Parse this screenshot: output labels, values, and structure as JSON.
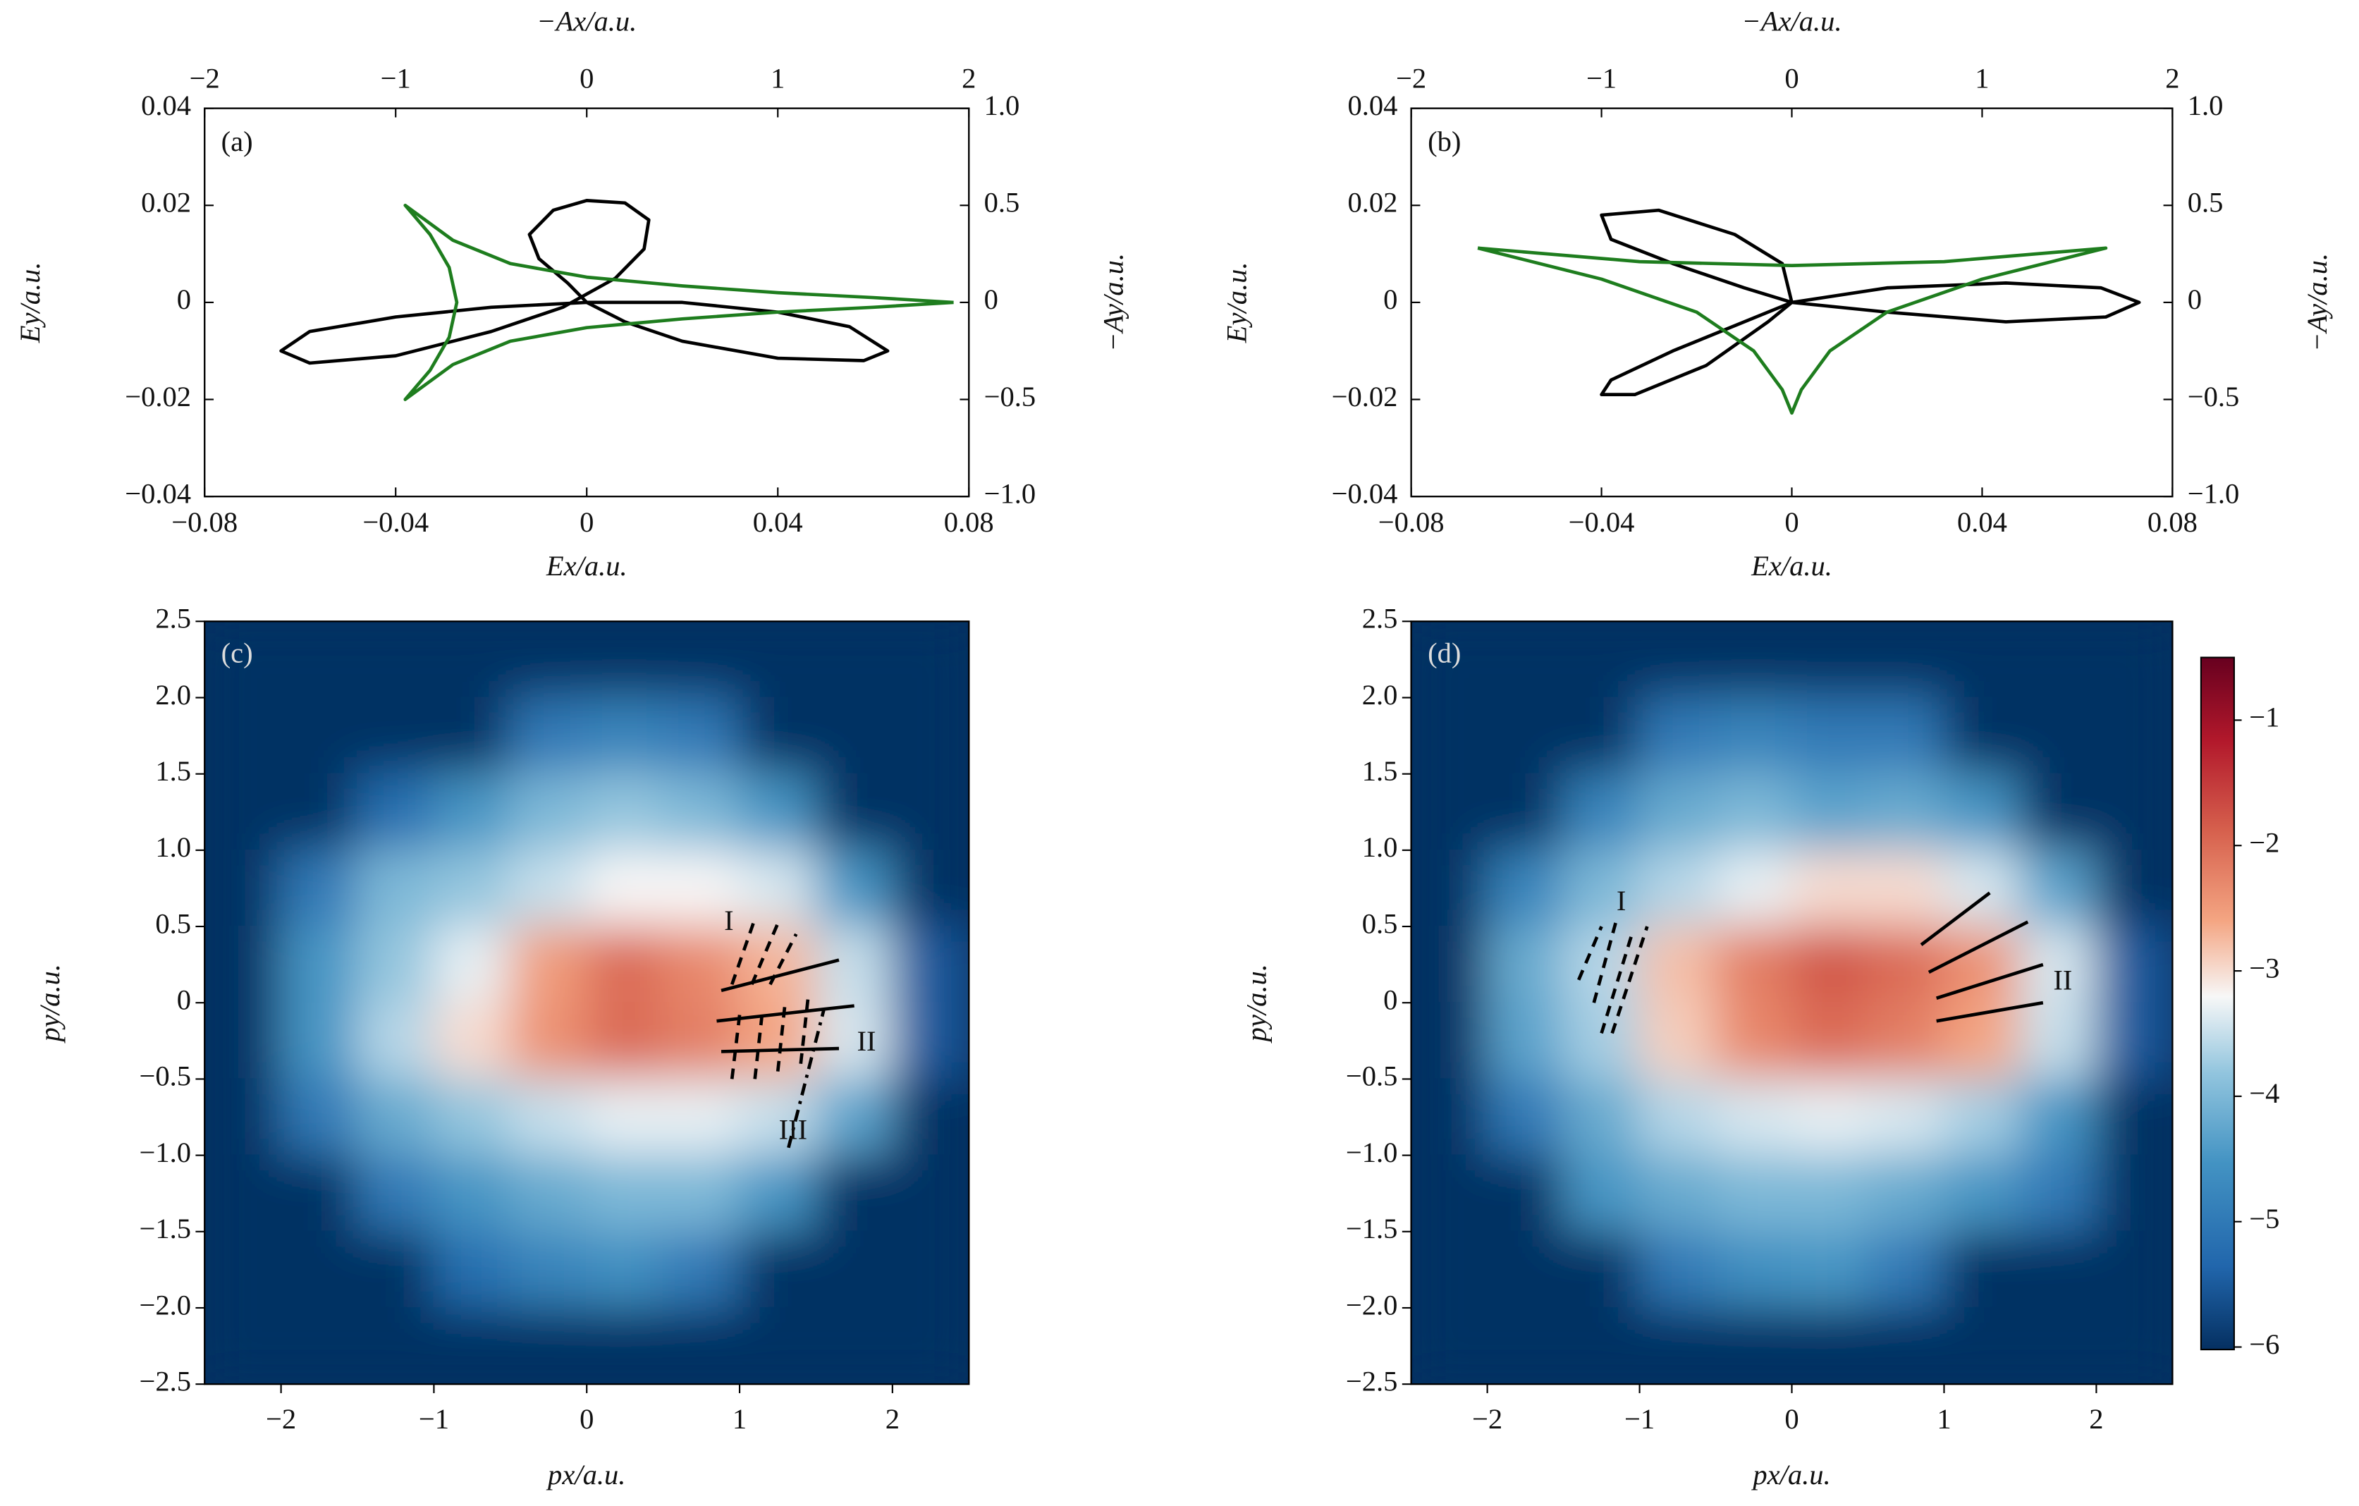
{
  "chart_data": [
    {
      "type": "line",
      "label": "(a)",
      "xlabel": "Ex/a.u.",
      "ylabel": "Ey/a.u.",
      "x2label": "−Ax/a.u.",
      "y2label": "−Ay/a.u.",
      "xlim": [
        -0.08,
        0.08
      ],
      "xticks": [
        {
          "value": -0.08,
          "label": "−0.08"
        },
        {
          "value": -0.04,
          "label": "−0.04"
        },
        0,
        0.04,
        0.08
      ],
      "ylim": [
        -0.04,
        0.04
      ],
      "yticks": [
        {
          "value": -0.04,
          "label": "−0.04"
        },
        {
          "value": -0.02,
          "label": "−0.02"
        },
        0,
        0.02,
        0.04
      ],
      "x2lim": [
        -2,
        2
      ],
      "x2ticks": [
        {
          "value": -2,
          "label": "−2"
        },
        {
          "value": -1,
          "label": "−1"
        },
        0,
        1,
        2
      ],
      "y2lim": [
        -1,
        1
      ],
      "y2ticks": [
        {
          "value": -1,
          "label": "−1.0"
        },
        {
          "value": -0.5,
          "label": "−0.5"
        },
        0,
        0.5,
        {
          "value": 1,
          "label": "1.0"
        }
      ],
      "series": [
        {
          "color": "#000000",
          "x": [
            0,
            0.02,
            0.04,
            0.055,
            0.063,
            0.058,
            0.04,
            0.02,
            0.008,
            0,
            -0.02,
            -0.04,
            -0.058,
            -0.064,
            -0.058,
            -0.04,
            -0.02,
            -0.005,
            0.006,
            0.012,
            0.013,
            0.008,
            0,
            -0.007,
            -0.012,
            -0.01,
            -0.004,
            0
          ],
          "y": [
            0,
            0,
            -0.002,
            -0.005,
            -0.01,
            -0.012,
            -0.0115,
            -0.008,
            -0.004,
            0,
            -0.001,
            -0.003,
            -0.006,
            -0.01,
            -0.0125,
            -0.011,
            -0.006,
            -0.001,
            0.005,
            0.011,
            0.017,
            0.0205,
            0.021,
            0.019,
            0.014,
            0.009,
            0.004,
            0
          ]
        },
        {
          "color": "#1e7d1e",
          "xaxis": "x2",
          "axis": "y2",
          "x": [
            1.92,
            1.5,
            1.0,
            0.5,
            0,
            -0.4,
            -0.7,
            -0.95,
            -0.82,
            -0.72,
            -0.68,
            -0.72,
            -0.82,
            -0.95,
            -0.7,
            -0.4,
            0,
            0.5,
            1.0,
            1.5,
            1.92
          ],
          "y": [
            0,
            0.025,
            0.05,
            0.085,
            0.13,
            0.2,
            0.32,
            0.5,
            0.35,
            0.18,
            0,
            -0.18,
            -0.35,
            -0.5,
            -0.32,
            -0.2,
            -0.13,
            -0.085,
            -0.05,
            -0.025,
            0
          ]
        }
      ]
    },
    {
      "type": "line",
      "label": "(b)",
      "xlabel": "Ex/a.u.",
      "ylabel": "Ey/a.u.",
      "x2label": "−Ax/a.u.",
      "y2label": "−Ay/a.u.",
      "xlim": [
        -0.08,
        0.08
      ],
      "xticks": [
        {
          "value": -0.08,
          "label": "−0.08"
        },
        {
          "value": -0.04,
          "label": "−0.04"
        },
        0,
        0.04,
        0.08
      ],
      "ylim": [
        -0.04,
        0.04
      ],
      "yticks": [
        {
          "value": -0.04,
          "label": "−0.04"
        },
        {
          "value": -0.02,
          "label": "−0.02"
        },
        0,
        0.02,
        0.04
      ],
      "x2lim": [
        -2,
        2
      ],
      "x2ticks": [
        {
          "value": -2,
          "label": "−2"
        },
        {
          "value": -1,
          "label": "−1"
        },
        0,
        1,
        2
      ],
      "y2lim": [
        -1,
        1
      ],
      "y2ticks": [
        {
          "value": -1,
          "label": "−1.0"
        },
        {
          "value": -0.5,
          "label": "−0.5"
        },
        0,
        0.5,
        {
          "value": 1,
          "label": "1.0"
        }
      ],
      "series": [
        {
          "color": "#000000",
          "x": [
            0,
            0.02,
            0.045,
            0.065,
            0.073,
            0.066,
            0.045,
            0.02,
            0,
            -0.01,
            -0.025,
            -0.038,
            -0.04,
            -0.033,
            -0.018,
            -0.005,
            0,
            -0.002,
            -0.012,
            -0.028,
            -0.04,
            -0.038,
            -0.025,
            -0.01,
            0
          ],
          "y": [
            0,
            0.003,
            0.004,
            0.003,
            0,
            -0.003,
            -0.004,
            -0.002,
            0,
            -0.004,
            -0.01,
            -0.016,
            -0.019,
            -0.019,
            -0.013,
            -0.004,
            0,
            0.008,
            0.014,
            0.019,
            0.018,
            0.013,
            0.008,
            0.003,
            0
          ]
        },
        {
          "color": "#1e7d1e",
          "xaxis": "x2",
          "axis": "y2",
          "x": [
            -1.65,
            -0.8,
            0,
            0.8,
            1.65,
            1.0,
            0.5,
            0.2,
            0.05,
            0,
            -0.05,
            -0.2,
            -0.5,
            -1.0,
            -1.65
          ],
          "y": [
            0.28,
            0.21,
            0.19,
            0.21,
            0.28,
            0.12,
            -0.05,
            -0.25,
            -0.45,
            -0.57,
            -0.45,
            -0.25,
            -0.05,
            0.12,
            0.28
          ]
        }
      ]
    },
    {
      "type": "heatmap",
      "label": "(c)",
      "xlabel": "px/a.u.",
      "ylabel": "py/a.u.",
      "xlim": [
        -2.5,
        2.5
      ],
      "xticks": [
        {
          "value": -2,
          "label": "−2"
        },
        {
          "value": -1,
          "label": "−1"
        },
        0,
        1,
        2
      ],
      "ylim": [
        -2.5,
        2.5
      ],
      "yticks": [
        {
          "value": -2.5,
          "label": "−2.5"
        },
        {
          "value": -2,
          "label": "−2.0"
        },
        {
          "value": -1.5,
          "label": "−1.5"
        },
        {
          "value": -1,
          "label": "−1.0"
        },
        {
          "value": -0.5,
          "label": "−0.5"
        },
        0,
        0.5,
        {
          "value": 1,
          "label": "1.0"
        },
        1.5,
        {
          "value": 2,
          "label": "2.0"
        },
        2.5
      ],
      "clim": [
        -6.02,
        -0.5
      ],
      "x_edges": [
        -2.5,
        -2,
        -1.5,
        -1,
        -0.5,
        0,
        0.5,
        1,
        1.5,
        2,
        2.5
      ],
      "y_edges": [
        2.5,
        2,
        1.5,
        1,
        0.5,
        0,
        -0.5,
        -1,
        -1.5,
        -2,
        -2.5
      ],
      "z": [
        [
          -6,
          -6,
          -6,
          -6,
          -6,
          -6,
          -6,
          -6,
          -6,
          -6
        ],
        [
          -6,
          -6,
          -6,
          -6,
          -5,
          -4.8,
          -5,
          -6,
          -6,
          -6
        ],
        [
          -6,
          -6,
          -5.2,
          -4.5,
          -4,
          -3.8,
          -4,
          -4.5,
          -6,
          -6
        ],
        [
          -6,
          -5,
          -4,
          -3.8,
          -3.5,
          -3.2,
          -3.2,
          -3.4,
          -4.5,
          -6
        ],
        [
          -6,
          -4.5,
          -3.8,
          -3.3,
          -2.5,
          -2,
          -2.3,
          -2.7,
          -3.5,
          -5.5
        ],
        [
          -6,
          -4.5,
          -3.6,
          -3,
          -2.4,
          -2,
          -2.2,
          -2.6,
          -3.4,
          -5.5
        ],
        [
          -6,
          -5,
          -4.2,
          -3.8,
          -3.5,
          -3.3,
          -3.3,
          -3.5,
          -4.3,
          -6
        ],
        [
          -6,
          -6,
          -5,
          -4.5,
          -4.2,
          -4,
          -4,
          -4.5,
          -6,
          -6
        ],
        [
          -6,
          -6,
          -6,
          -5.2,
          -4.8,
          -4.6,
          -5,
          -6,
          -6,
          -6
        ],
        [
          -6,
          -6,
          -6,
          -6,
          -6,
          -6,
          -6,
          -6,
          -6,
          -6
        ]
      ],
      "annotation_lines": [
        {
          "style": "solid",
          "x": [
            0.88,
            1.65
          ],
          "y": [
            0.08,
            0.28
          ]
        },
        {
          "style": "solid",
          "x": [
            0.85,
            1.75
          ],
          "y": [
            -0.12,
            -0.02
          ]
        },
        {
          "style": "solid",
          "x": [
            0.88,
            1.65
          ],
          "y": [
            -0.32,
            -0.3
          ]
        },
        {
          "style": "dashed",
          "x": [
            0.95,
            1.1
          ],
          "y": [
            0.12,
            0.55
          ]
        },
        {
          "style": "dashed",
          "x": [
            1.08,
            1.25
          ],
          "y": [
            0.12,
            0.52
          ]
        },
        {
          "style": "dashed",
          "x": [
            1.2,
            1.37
          ],
          "y": [
            0.12,
            0.45
          ]
        },
        {
          "style": "dashed",
          "x": [
            0.95,
            1.0
          ],
          "y": [
            -0.5,
            -0.08
          ]
        },
        {
          "style": "dashed",
          "x": [
            1.1,
            1.15
          ],
          "y": [
            -0.5,
            -0.05
          ]
        },
        {
          "style": "dashed",
          "x": [
            1.25,
            1.3
          ],
          "y": [
            -0.45,
            0.02
          ]
        },
        {
          "style": "dashed",
          "x": [
            1.4,
            1.45
          ],
          "y": [
            -0.4,
            0.05
          ]
        },
        {
          "style": "dashdot",
          "x": [
            1.32,
            1.55
          ],
          "y": [
            -0.95,
            -0.05
          ]
        }
      ],
      "annotations": [
        {
          "text": "I",
          "x": 0.93,
          "y": 0.52
        },
        {
          "text": "II",
          "x": 1.83,
          "y": -0.27
        },
        {
          "text": "III",
          "x": 1.35,
          "y": -0.85
        }
      ]
    },
    {
      "type": "heatmap",
      "label": "(d)",
      "xlabel": "px/a.u.",
      "ylabel": "py/a.u.",
      "xlim": [
        -2.5,
        2.5
      ],
      "xticks": [
        {
          "value": -2,
          "label": "−2"
        },
        {
          "value": -1,
          "label": "−1"
        },
        0,
        1,
        2
      ],
      "ylim": [
        -2.5,
        2.5
      ],
      "yticks": [
        {
          "value": -2.5,
          "label": "−2.5"
        },
        {
          "value": -2,
          "label": "−2.0"
        },
        {
          "value": -1.5,
          "label": "−1.5"
        },
        {
          "value": -1,
          "label": "−1.0"
        },
        {
          "value": -0.5,
          "label": "−0.5"
        },
        0,
        0.5,
        {
          "value": 1,
          "label": "1.0"
        },
        1.5,
        {
          "value": 2,
          "label": "2.0"
        },
        2.5
      ],
      "clim": [
        -6.02,
        -0.5
      ],
      "x_edges": [
        -2.5,
        -2,
        -1.5,
        -1,
        -0.5,
        0,
        0.5,
        1,
        1.5,
        2,
        2.5
      ],
      "y_edges": [
        2.5,
        2,
        1.5,
        1,
        0.5,
        0,
        -0.5,
        -1,
        -1.5,
        -2,
        -2.5
      ],
      "z": [
        [
          -6,
          -6,
          -6,
          -6,
          -6,
          -6,
          -6,
          -6,
          -6,
          -6
        ],
        [
          -6,
          -6,
          -6,
          -5,
          -4.8,
          -5,
          -5,
          -6,
          -6,
          -6
        ],
        [
          -6,
          -6,
          -4.8,
          -4.2,
          -4,
          -4.3,
          -4.2,
          -4.5,
          -6,
          -6
        ],
        [
          -6,
          -4.8,
          -4,
          -3.6,
          -3.3,
          -3,
          -3,
          -3.4,
          -4.3,
          -6
        ],
        [
          -6,
          -4.2,
          -3.6,
          -2.8,
          -2.2,
          -1.8,
          -2,
          -2.4,
          -3.4,
          -5.5
        ],
        [
          -6,
          -4.3,
          -3.7,
          -2.9,
          -2.3,
          -2,
          -2.2,
          -2.6,
          -3.5,
          -5.5
        ],
        [
          -6,
          -5,
          -4.2,
          -3.6,
          -3.4,
          -3.3,
          -3.4,
          -3.7,
          -4.5,
          -6
        ],
        [
          -6,
          -6,
          -4.5,
          -4.2,
          -4,
          -4,
          -4.2,
          -4.5,
          -5,
          -6
        ],
        [
          -6,
          -6,
          -6,
          -5,
          -4.6,
          -4.5,
          -5,
          -6,
          -6,
          -6
        ],
        [
          -6,
          -6,
          -6,
          -6,
          -6,
          -6,
          -6,
          -6,
          -6,
          -6
        ]
      ],
      "annotation_lines": [
        {
          "style": "solid",
          "x": [
            0.85,
            1.3
          ],
          "y": [
            0.38,
            0.72
          ]
        },
        {
          "style": "solid",
          "x": [
            0.9,
            1.55
          ],
          "y": [
            0.2,
            0.53
          ]
        },
        {
          "style": "solid",
          "x": [
            0.95,
            1.65
          ],
          "y": [
            0.03,
            0.25
          ]
        },
        {
          "style": "solid",
          "x": [
            0.95,
            1.65
          ],
          "y": [
            -0.12,
            0
          ]
        },
        {
          "style": "dashed",
          "x": [
            -1.4,
            -1.25
          ],
          "y": [
            0.15,
            0.5
          ]
        },
        {
          "style": "dashed",
          "x": [
            -1.3,
            -1.15
          ],
          "y": [
            0,
            0.55
          ]
        },
        {
          "style": "dashed",
          "x": [
            -1.25,
            -1.05
          ],
          "y": [
            -0.2,
            0.45
          ]
        },
        {
          "style": "dashed",
          "x": [
            -1.18,
            -0.95
          ],
          "y": [
            -0.2,
            0.5
          ]
        }
      ],
      "annotations": [
        {
          "text": "I",
          "x": -1.12,
          "y": 0.65
        },
        {
          "text": "II",
          "x": 1.78,
          "y": 0.13
        }
      ],
      "colorbar": {
        "clim": [
          -6.02,
          -0.5
        ],
        "ticks": [
          {
            "value": -6,
            "label": "−6"
          },
          {
            "value": -5,
            "label": "−5"
          },
          {
            "value": -4,
            "label": "−4"
          },
          {
            "value": -3,
            "label": "−3"
          },
          {
            "value": -2,
            "label": "−2"
          },
          {
            "value": -1,
            "label": "−1"
          }
        ]
      }
    }
  ]
}
